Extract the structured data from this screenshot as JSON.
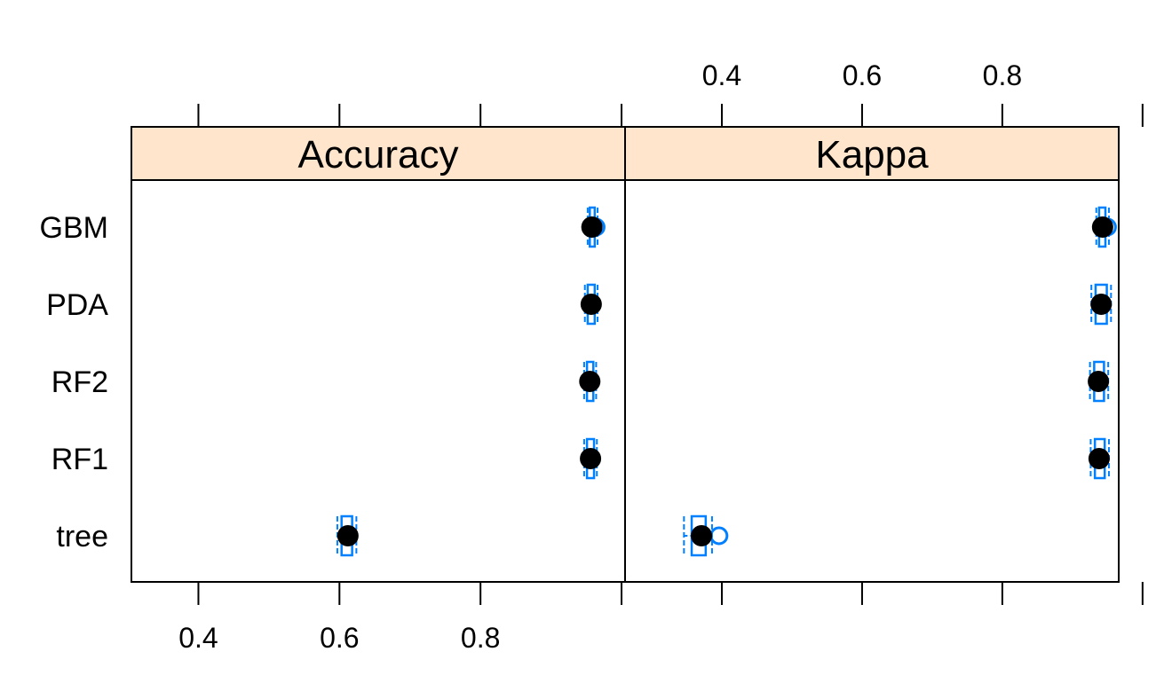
{
  "chart_data": {
    "type": "scatter",
    "panels": [
      {
        "name": "Accuracy",
        "xlim": [
          0.305,
          1.005
        ],
        "ticks": [
          0.4,
          0.6,
          0.8,
          1.0
        ],
        "tick_labels": [
          "0.4",
          "0.6",
          "0.8",
          ""
        ],
        "tick_label_side": "bottom",
        "models": [
          {
            "label": "GBM",
            "median": 0.958,
            "mean": 0.964,
            "box": [
              0.955,
              0.962
            ],
            "whisker": [
              0.952,
              0.966
            ]
          },
          {
            "label": "PDA",
            "median": 0.957,
            "mean": 0.957,
            "box": [
              0.952,
              0.962
            ],
            "whisker": [
              0.948,
              0.966
            ]
          },
          {
            "label": "RF2",
            "median": 0.955,
            "mean": 0.956,
            "box": [
              0.951,
              0.96
            ],
            "whisker": [
              0.947,
              0.964
            ]
          },
          {
            "label": "RF1",
            "median": 0.956,
            "mean": 0.956,
            "box": [
              0.951,
              0.961
            ],
            "whisker": [
              0.947,
              0.965
            ]
          },
          {
            "label": "tree",
            "median": 0.612,
            "mean": 0.611,
            "box": [
              0.603,
              0.618
            ],
            "whisker": [
              0.597,
              0.624
            ]
          }
        ]
      },
      {
        "name": "Kappa",
        "xlim": [
          0.262,
          0.966
        ],
        "ticks": [
          0.4,
          0.6,
          0.8,
          1.0
        ],
        "tick_labels": [
          "0.4",
          "0.6",
          "0.8",
          ""
        ],
        "tick_label_side": "top",
        "models": [
          {
            "label": "GBM",
            "median": 0.943,
            "mean": 0.95,
            "box": [
              0.938,
              0.947
            ],
            "whisker": [
              0.934,
              0.952
            ]
          },
          {
            "label": "PDA",
            "median": 0.941,
            "mean": 0.941,
            "box": [
              0.933,
              0.949
            ],
            "whisker": [
              0.927,
              0.955
            ]
          },
          {
            "label": "RF2",
            "median": 0.937,
            "mean": 0.938,
            "box": [
              0.931,
              0.945
            ],
            "whisker": [
              0.925,
              0.951
            ]
          },
          {
            "label": "RF1",
            "median": 0.938,
            "mean": 0.938,
            "box": [
              0.932,
              0.946
            ],
            "whisker": [
              0.926,
              0.952
            ]
          },
          {
            "label": "tree",
            "median": 0.371,
            "mean": 0.396,
            "box": [
              0.357,
              0.377
            ],
            "whisker": [
              0.346,
              0.386
            ]
          }
        ]
      }
    ],
    "categories": [
      "GBM",
      "PDA",
      "RF2",
      "RF1",
      "tree"
    ],
    "grid": false,
    "legend": "none"
  },
  "colors": {
    "strip_fill": "#FFE5CC",
    "dot": "#000000",
    "box": "#0080FF",
    "mean_marker": "#0080FF",
    "frame": "#000000"
  }
}
